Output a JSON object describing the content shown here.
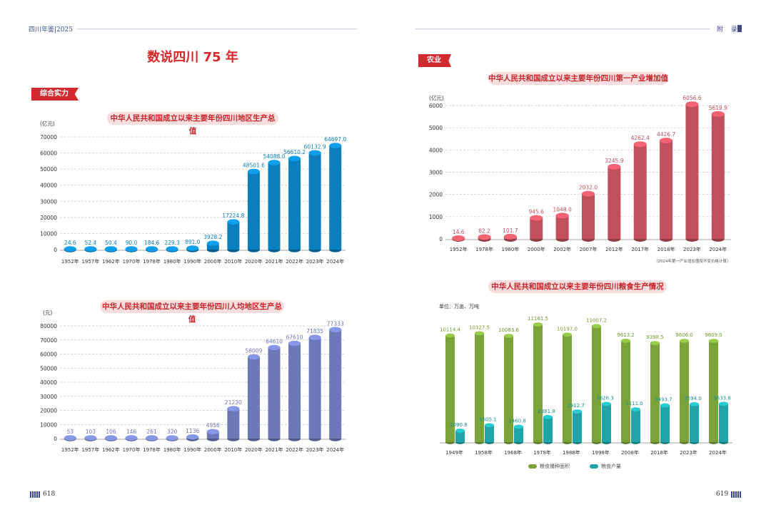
{
  "header": {
    "left_text": "四川年鉴|2025",
    "right_text": "附 录"
  },
  "page_numbers": {
    "left": "618",
    "right": "619"
  },
  "main_title": "数说四川 75 年",
  "sections": {
    "left": "综合实力",
    "right": "农业"
  },
  "note": "（2024年第一产业增加值按不变价格计算）",
  "colors": {
    "gdp": "#0b7fbd",
    "per_capita": "#6c78b8",
    "primary": "#c24f5c",
    "grain_area": "#7aa33a",
    "grain_output": "#1fa4a8"
  },
  "chart_data": [
    {
      "id": "gdp",
      "type": "bar",
      "title": "中华人民共和国成立以来主要年份四川地区生产总值",
      "unit": "(亿元)",
      "categories": [
        "1952年",
        "1957年",
        "1962年",
        "1970年",
        "1978年",
        "1980年",
        "1990年",
        "2000年",
        "2010年",
        "2020年",
        "2021年",
        "2022年",
        "2023年",
        "2024年"
      ],
      "values": [
        24.6,
        52.4,
        50.4,
        90.0,
        184.6,
        229.3,
        891.0,
        3928.2,
        17224.8,
        48501.6,
        54088.0,
        56610.2,
        60132.9,
        64697.0
      ],
      "labels": [
        "24.6",
        "52.4",
        "50.4",
        "90.0",
        "184.6",
        "229.3",
        "891.0",
        "3928.2",
        "17224.8",
        "48501.6",
        "54088.0",
        "56610.2",
        "60132.9",
        "64697.0"
      ],
      "yticks": [
        0,
        10000,
        20000,
        30000,
        40000,
        50000,
        60000,
        70000
      ],
      "ylim": [
        0,
        70000
      ]
    },
    {
      "id": "per_capita",
      "type": "bar",
      "title": "中华人民共和国成立以来主要年份四川人均地区生产总值",
      "unit": "(元)",
      "categories": [
        "1952年",
        "1957年",
        "1962年",
        "1970年",
        "1978年",
        "1980年",
        "1990年",
        "2000年",
        "2010年",
        "2020年",
        "2021年",
        "2022年",
        "2023年",
        "2024年"
      ],
      "values": [
        53,
        103,
        106,
        146,
        261,
        320,
        1136,
        4956,
        21230,
        58009,
        64610,
        67610,
        71835,
        77333
      ],
      "labels": [
        "53",
        "103",
        "106",
        "146",
        "261",
        "320",
        "1136",
        "4956",
        "21230",
        "58009",
        "64610",
        "67610",
        "71835",
        "77333"
      ],
      "yticks": [
        0,
        10000,
        20000,
        30000,
        40000,
        50000,
        60000,
        70000,
        80000
      ],
      "ylim": [
        0,
        80000
      ]
    },
    {
      "id": "primary",
      "type": "bar",
      "title": "中华人民共和国成立以来主要年份四川第一产业增加值",
      "unit": "(亿元)",
      "categories": [
        "1952年",
        "1978年",
        "1980年",
        "2000年",
        "2002年",
        "2007年",
        "2012年",
        "2017年",
        "2018年",
        "2023年",
        "2024年"
      ],
      "values": [
        14.6,
        82.2,
        101.7,
        945.6,
        1048.0,
        2032.0,
        3245.9,
        4262.4,
        4426.7,
        6056.6,
        5619.9
      ],
      "labels": [
        "14.6",
        "82.2",
        "101.7",
        "945.6",
        "1048.0",
        "2032.0",
        "3245.9",
        "4262.4",
        "4426.7",
        "6056.6",
        "5619.9"
      ],
      "yticks": [
        0,
        1000,
        2000,
        3000,
        4000,
        5000,
        6000
      ],
      "ylim": [
        0,
        6000
      ]
    },
    {
      "id": "grain",
      "type": "bar",
      "title": "中华人民共和国成立以来主要年份四川粮食生产情况",
      "unit": "单位：万亩、万吨",
      "categories": [
        "1949年",
        "1958年",
        "1968年",
        "1978年",
        "1988年",
        "1998年",
        "2008年",
        "2018年",
        "2023年",
        "2024年"
      ],
      "series": [
        {
          "name": "粮食播种面积",
          "values": [
            10114.4,
            10327.5,
            10083.6,
            11161.5,
            10197.0,
            11007.2,
            9613.2,
            9398.5,
            9606.0,
            9609.0
          ],
          "labels": [
            "10114.4",
            "10327.5",
            "10083.6",
            "11161.5",
            "10197.0",
            "11007.2",
            "9613.2",
            "9398.5",
            "9606.0",
            "9609.0"
          ]
        },
        {
          "name": "粮食产量",
          "values": [
            1090.8,
            1605.1,
            1460.8,
            2381.8,
            2912.7,
            3626.3,
            3111.0,
            3493.7,
            3594.0,
            3633.8
          ],
          "labels": [
            "1090.8",
            "1605.1",
            "1460.8",
            "2381.8",
            "2912.7",
            "3626.3",
            "3111.0",
            "3493.7",
            "3594.0",
            "3633.8"
          ]
        }
      ],
      "legend": [
        "粮食播种面积",
        "粮食产量"
      ]
    }
  ]
}
